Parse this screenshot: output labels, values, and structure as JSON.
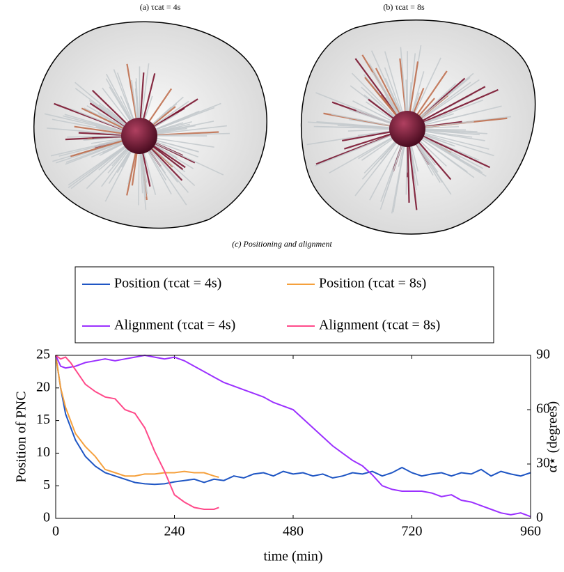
{
  "figure": {
    "panel_a_caption": "(a) τcat = 4s",
    "panel_b_caption": "(b) τcat = 8s",
    "panel_c_caption": "(c) Positioning and alignment"
  },
  "chart_data": {
    "type": "line",
    "xlabel": "time (min)",
    "ylabel": "Position of PNC",
    "y2label": "α⋆ (degrees)",
    "xlim": [
      0,
      960
    ],
    "xticks": [
      0,
      240,
      480,
      720,
      960
    ],
    "ylim": [
      0,
      25
    ],
    "yticks": [
      0,
      5,
      10,
      15,
      20,
      25
    ],
    "y2lim": [
      0,
      90
    ],
    "y2ticks": [
      0,
      30,
      60,
      90
    ],
    "series": [
      {
        "name": "Position (τcat = 4s)",
        "color": "#1f56c4",
        "x": [
          0,
          10,
          20,
          40,
          60,
          80,
          100,
          120,
          140,
          160,
          180,
          200,
          220,
          240,
          260,
          280,
          300,
          320,
          340,
          360,
          380,
          400,
          420,
          440,
          460,
          480,
          500,
          520,
          540,
          560,
          580,
          600,
          620,
          640,
          660,
          680,
          700,
          720,
          740,
          760,
          780,
          800,
          820,
          840,
          860,
          880,
          900,
          920,
          940,
          960
        ],
        "values": [
          25,
          20,
          16,
          12,
          9.5,
          8,
          7,
          6.5,
          6,
          5.5,
          5.3,
          5.2,
          5.3,
          5.6,
          5.8,
          6,
          5.5,
          6,
          5.8,
          6.5,
          6.2,
          6.8,
          7,
          6.5,
          7.2,
          6.8,
          7,
          6.5,
          6.8,
          6.2,
          6.5,
          7,
          6.8,
          7.2,
          6.5,
          7,
          7.8,
          7,
          6.5,
          6.8,
          7,
          6.5,
          7,
          6.8,
          7.5,
          6.5,
          7.2,
          6.8,
          6.5,
          7
        ]
      },
      {
        "name": "Position (τcat = 8s)",
        "color": "#f5a03c",
        "x": [
          0,
          10,
          20,
          40,
          60,
          80,
          100,
          120,
          140,
          160,
          180,
          200,
          220,
          240,
          260,
          280,
          300,
          320,
          330
        ],
        "values": [
          25,
          20,
          17,
          13,
          11,
          9.5,
          7.5,
          7,
          6.5,
          6.5,
          6.8,
          6.8,
          7,
          7,
          7.2,
          7,
          7,
          6.5,
          6.3
        ]
      },
      {
        "name": "Alignment (τcat = 4s)",
        "color": "#9b30ff",
        "axis": "y2",
        "x": [
          0,
          10,
          20,
          40,
          60,
          80,
          100,
          120,
          140,
          160,
          180,
          200,
          220,
          240,
          260,
          280,
          300,
          320,
          340,
          360,
          380,
          400,
          420,
          440,
          460,
          480,
          500,
          520,
          540,
          560,
          580,
          600,
          620,
          640,
          660,
          680,
          700,
          720,
          740,
          760,
          780,
          800,
          820,
          840,
          860,
          880,
          900,
          920,
          940,
          960
        ],
        "values": [
          90,
          84,
          83,
          84,
          86,
          87,
          88,
          87,
          88,
          89,
          90,
          89,
          88,
          89,
          87,
          84,
          81,
          78,
          75,
          73,
          71,
          69,
          67,
          64,
          62,
          60,
          55,
          50,
          45,
          40,
          36,
          32,
          29,
          24,
          18,
          16,
          15,
          15,
          15,
          14,
          12,
          13,
          10,
          9,
          7,
          5,
          3,
          2,
          3,
          1
        ]
      },
      {
        "name": "Alignment (τcat = 8s)",
        "color": "#ff4a8a",
        "axis": "y2",
        "x": [
          0,
          10,
          20,
          30,
          40,
          60,
          80,
          100,
          120,
          140,
          160,
          180,
          200,
          220,
          240,
          260,
          280,
          300,
          320,
          330
        ],
        "values": [
          90,
          88,
          89,
          86,
          82,
          74,
          70,
          67,
          66,
          60,
          58,
          50,
          37,
          26,
          13,
          9,
          6,
          5,
          5,
          6
        ]
      }
    ]
  }
}
